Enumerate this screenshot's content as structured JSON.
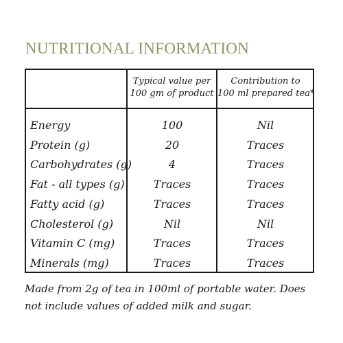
{
  "title": "NUTRITIONAL INFORMATION",
  "table": {
    "headers": {
      "label": "",
      "typical_line1": "Typical value per",
      "typical_line2": "100 gm of product",
      "contribution_line1": "Contribution to",
      "contribution_line2": "100 ml prepared tea*"
    },
    "rows": [
      {
        "label": "Energy",
        "typical": "100",
        "contribution": "Nil"
      },
      {
        "label": "Protein (g)",
        "typical": "20",
        "contribution": "Traces"
      },
      {
        "label": "Carbohydrates (g)",
        "typical": "4",
        "contribution": "Traces"
      },
      {
        "label": "Fat - all types (g)",
        "typical": "Traces",
        "contribution": "Traces"
      },
      {
        "label": "Fatty acid (g)",
        "typical": "Traces",
        "contribution": "Traces"
      },
      {
        "label": "Cholesterol (g)",
        "typical": "Nil",
        "contribution": "Nil"
      },
      {
        "label": "Vitamin C (mg)",
        "typical": "Traces",
        "contribution": "Traces"
      },
      {
        "label": "Minerals (mg)",
        "typical": "Traces",
        "contribution": "Traces"
      }
    ]
  },
  "footnote": "Made from 2g of tea in 100ml of portable water. Does not include values of added milk and sugar.",
  "colors": {
    "title": "#8f9565",
    "text": "#1a1a1a",
    "background": "#ffffff"
  }
}
